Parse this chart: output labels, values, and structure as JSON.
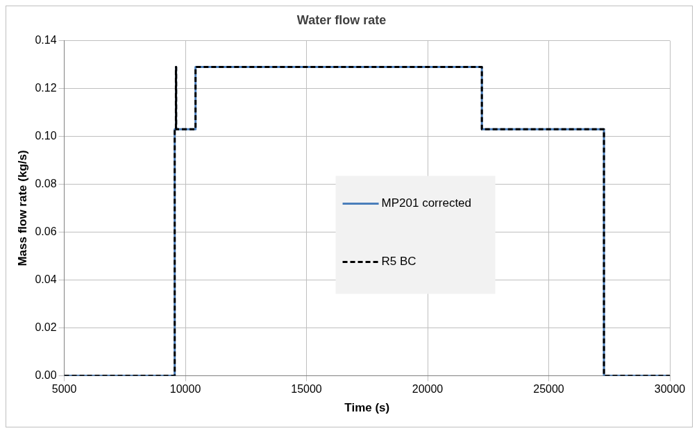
{
  "chart_data": {
    "type": "line",
    "title": "Water flow rate",
    "xlabel": "Time (s)",
    "ylabel": "Mass flow rate (kg/s)",
    "xlim": [
      5000,
      30000
    ],
    "xticks": [
      5000,
      10000,
      15000,
      20000,
      25000,
      30000
    ],
    "ylim": [
      0,
      0.14
    ],
    "yticks": [
      {
        "value": 0,
        "label": "0.00"
      },
      {
        "value": 0.02,
        "label": "0.02"
      },
      {
        "value": 0.04,
        "label": "0.04"
      },
      {
        "value": 0.06,
        "label": "0.06"
      },
      {
        "value": 0.08,
        "label": "0.08"
      },
      {
        "value": 0.1,
        "label": "0.10"
      },
      {
        "value": 0.12,
        "label": "0.12"
      },
      {
        "value": 0.14,
        "label": "0.14"
      }
    ],
    "grid": true,
    "legend": "center",
    "marker": "none",
    "series": [
      {
        "name": "MP201 corrected",
        "color": "#4a7ebb",
        "line_style": "solid",
        "x": [
          5000,
          9560,
          9560,
          9610,
          9610,
          9620,
          9620,
          10420,
          10420,
          22240,
          22240,
          27280,
          27280,
          30000
        ],
        "values": [
          0,
          0,
          0.103,
          0.103,
          0.129,
          0.129,
          0.103,
          0.103,
          0.129,
          0.129,
          0.103,
          0.103,
          0,
          0
        ]
      },
      {
        "name": "R5 BC",
        "color": "#000000",
        "line_style": "dashed",
        "x": [
          5000,
          9560,
          9560,
          9610,
          9610,
          9620,
          9620,
          10420,
          10420,
          22240,
          22240,
          27280,
          27280,
          30000
        ],
        "values": [
          0,
          0,
          0.103,
          0.103,
          0.129,
          0.129,
          0.103,
          0.103,
          0.129,
          0.129,
          0.103,
          0.103,
          0,
          0
        ]
      }
    ]
  }
}
